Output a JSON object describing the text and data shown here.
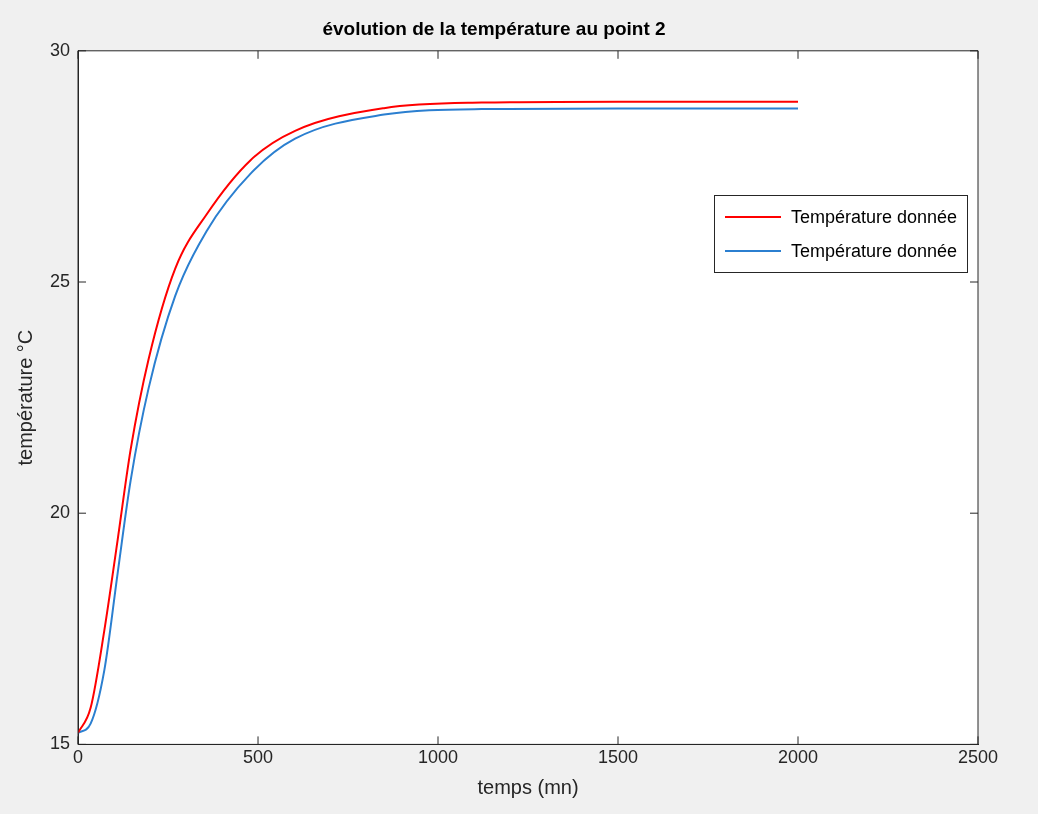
{
  "chart_data": {
    "type": "line",
    "title": "évolution de la température au point 2",
    "xlabel": "temps (mn)",
    "ylabel": "température °C",
    "series": [
      {
        "name": "Température donnée",
        "color": "#ff0000",
        "x": [
          0,
          35,
          73,
          110,
          146,
          196,
          270,
          357,
          480,
          603,
          850,
          1121,
          1500,
          2000
        ],
        "values": [
          15.25,
          15.79,
          17.46,
          19.42,
          21.37,
          23.33,
          25.29,
          26.46,
          27.64,
          28.27,
          28.76,
          28.88,
          28.9,
          28.9
        ]
      },
      {
        "name": "Température donnée",
        "color": "#2b7fd0",
        "x": [
          0,
          35,
          73,
          110,
          146,
          196,
          270,
          357,
          480,
          603,
          850,
          1121,
          1500,
          2000
        ],
        "values": [
          15.25,
          15.45,
          16.6,
          18.7,
          20.7,
          22.7,
          24.7,
          26.1,
          27.35,
          28.1,
          28.62,
          28.74,
          28.75,
          28.75
        ]
      }
    ],
    "xlim": [
      0,
      2500
    ],
    "xticks": [
      0,
      500,
      1000,
      1500,
      2000,
      2500
    ],
    "ylim": [
      15,
      30
    ],
    "yticks": [
      15,
      20,
      25,
      30
    ],
    "grid": false,
    "legend": "top right",
    "line_style": "solid",
    "marker": "none"
  }
}
